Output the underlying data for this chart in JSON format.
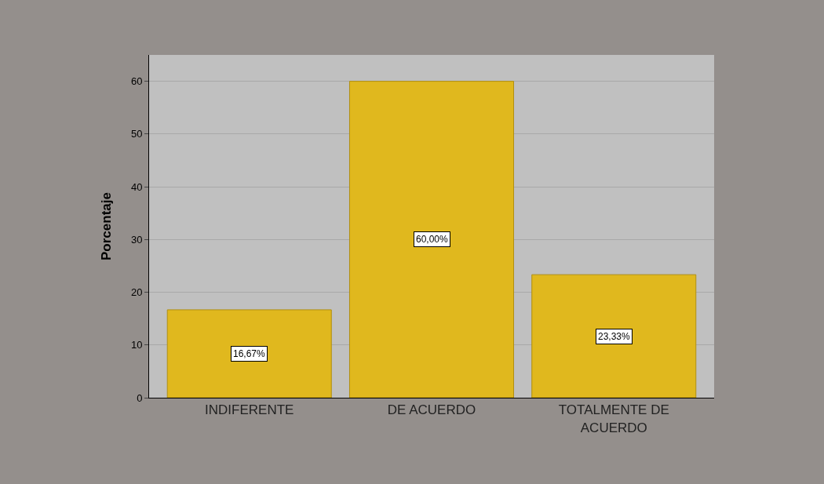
{
  "chart_data": {
    "type": "bar",
    "ylabel": "Porcentaje",
    "categories": [
      "INDIFERENTE",
      "DE ACUERDO",
      "TOTALMENTE DE ACUERDO"
    ],
    "values": [
      16.67,
      60,
      23.33
    ],
    "color": "#e0b81e",
    "value_labels": [
      "16,67%",
      "60,00%",
      "23,33%"
    ],
    "ylim": [
      0,
      65
    ],
    "yticks": [
      0,
      10,
      20,
      30,
      40,
      50,
      60
    ],
    "grid": "y"
  }
}
